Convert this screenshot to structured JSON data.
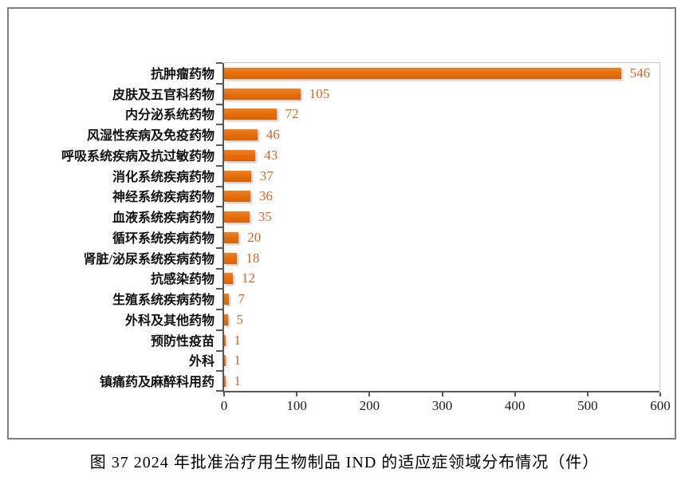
{
  "figure": {
    "caption": "图 37  2024 年批准治疗用生物制品 IND 的适应症领域分布情况（件）"
  },
  "chart_data": {
    "type": "bar",
    "orientation": "horizontal",
    "title": "",
    "xlabel": "",
    "ylabel": "",
    "categories": [
      "抗肿瘤药物",
      "皮肤及五官科药物",
      "内分泌系统药物",
      "风湿性疾病及免疫药物",
      "呼吸系统疾病及抗过敏药物",
      "消化系统疾病药物",
      "神经系统疾病药物",
      "血液系统疾病药物",
      "循环系统疾病药物",
      "肾脏/泌尿系统疾病药物",
      "抗感染药物",
      "生殖系统疾病药物",
      "外科及其他药物",
      "预防性疫苗",
      "外科",
      "镇痛药及麻醉科用药"
    ],
    "values": [
      546,
      105,
      72,
      46,
      43,
      37,
      36,
      35,
      20,
      18,
      12,
      7,
      5,
      1,
      1,
      1
    ],
    "data_labels": [
      546,
      105,
      72,
      46,
      43,
      37,
      36,
      35,
      20,
      18,
      12,
      7,
      5,
      1,
      1,
      1
    ],
    "x_ticks": [
      0,
      100,
      200,
      300,
      400,
      500,
      600
    ],
    "xlim": [
      0,
      600
    ],
    "grid": false,
    "legend": false,
    "colors": {
      "bar": "#e36c0a",
      "value_label": "#c9682c",
      "axis": "#595959",
      "plot_border": "#c6c6c6",
      "text": "#111111"
    }
  }
}
